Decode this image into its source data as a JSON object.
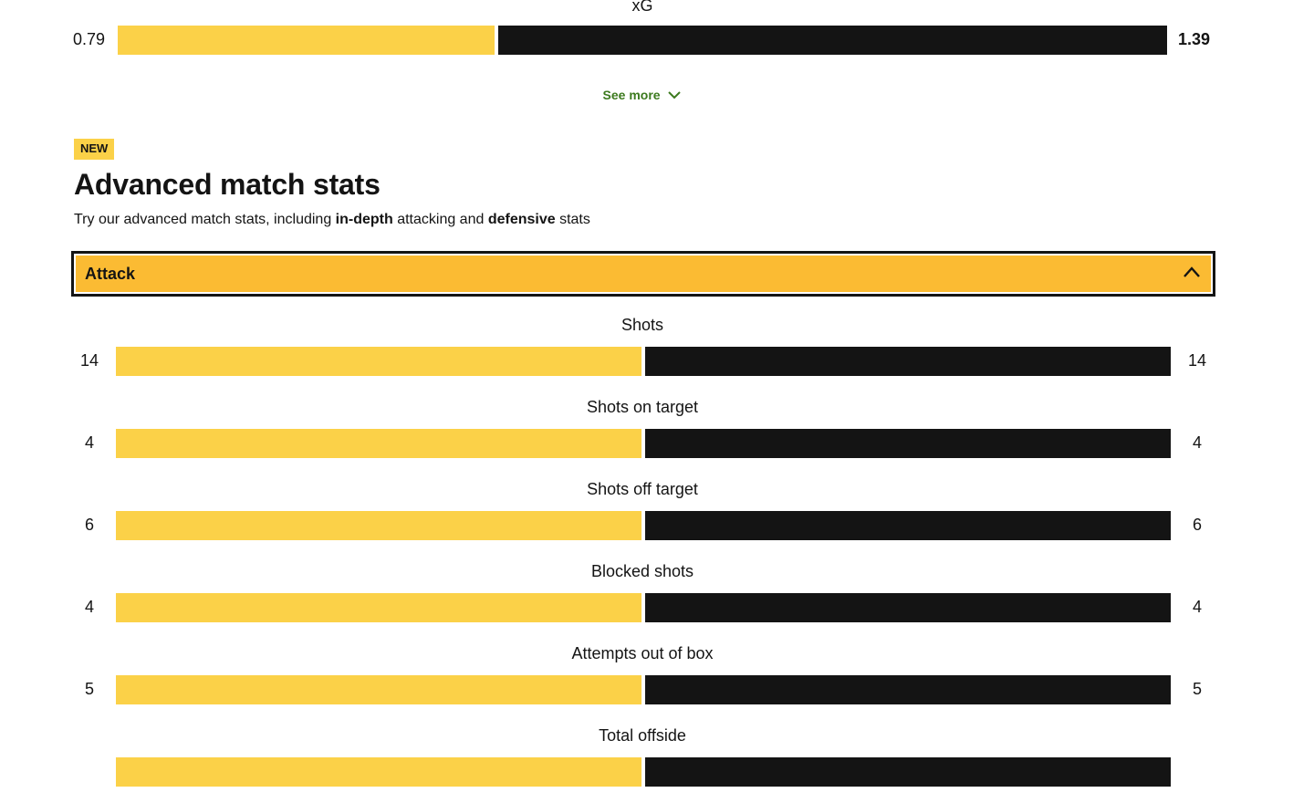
{
  "colors": {
    "home": "#fbd148",
    "away": "#141414",
    "accordion": "#fbbb33",
    "link": "#3c7a1e",
    "badge": "#fbd148"
  },
  "xg": {
    "label": "xG",
    "home": "0.79",
    "away": "1.39",
    "home_share": 0.36,
    "away_share": 0.64
  },
  "see_more": {
    "label": "See more",
    "icon": "chevron-down-icon"
  },
  "badge": "NEW",
  "section": {
    "title": "Advanced match stats",
    "desc_part1": "Try our advanced match stats, including ",
    "desc_bold1": "in-depth",
    "desc_part2": " attacking and ",
    "desc_bold2": "defensive",
    "desc_part3": " stats"
  },
  "accordion": {
    "title": "Attack",
    "icon": "chevron-up-icon",
    "expanded": true
  },
  "stats": [
    {
      "label": "Shots",
      "home": "14",
      "away": "14",
      "home_share": 0.5
    },
    {
      "label": "Shots on target",
      "home": "4",
      "away": "4",
      "home_share": 0.5
    },
    {
      "label": "Shots off target",
      "home": "6",
      "away": "6",
      "home_share": 0.5
    },
    {
      "label": "Blocked shots",
      "home": "4",
      "away": "4",
      "home_share": 0.5
    },
    {
      "label": "Attempts out of box",
      "home": "5",
      "away": "5",
      "home_share": 0.5
    },
    {
      "label": "Total offside",
      "home": "",
      "away": "",
      "home_share": 0.5
    }
  ]
}
